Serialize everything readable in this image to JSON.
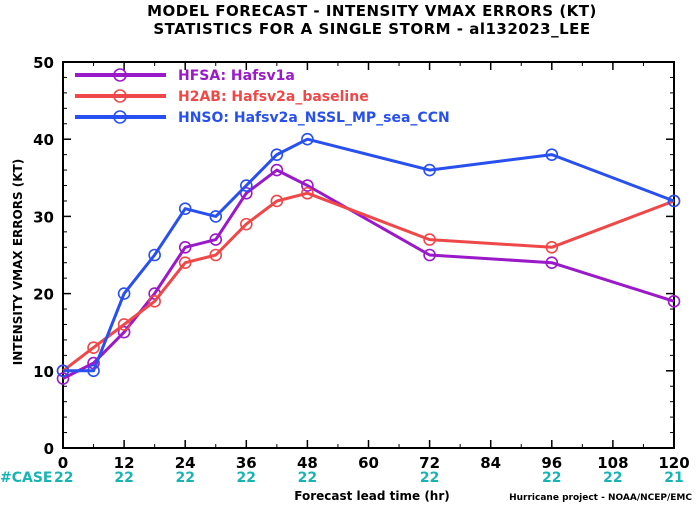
{
  "chart_data": {
    "type": "line",
    "title": "MODEL FORECAST - INTENSITY VMAX ERRORS (KT)",
    "subtitle": "STATISTICS FOR A SINGLE STORM - al132023_LEE",
    "xlabel": "Forecast lead time (hr)",
    "ylabel": "INTENSITY VMAX ERRORS (KT)",
    "xlim": [
      0,
      120
    ],
    "ylim": [
      0,
      50
    ],
    "xticks": [
      0,
      12,
      24,
      36,
      48,
      60,
      72,
      84,
      96,
      108,
      120
    ],
    "xtick_labels": [
      "0",
      "12",
      "24",
      "36",
      "48",
      "60",
      "72",
      "84",
      "96",
      "108",
      "120"
    ],
    "yticks": [
      0,
      10,
      20,
      30,
      40,
      50
    ],
    "ytick_labels": [
      "0",
      "10",
      "20",
      "30",
      "40",
      "50"
    ],
    "grid": false,
    "legend_position": "top-left",
    "series": [
      {
        "name": "HFSA:  Hafsv1a",
        "color": "#9a19c8",
        "x": [
          0,
          6,
          12,
          18,
          24,
          30,
          36,
          42,
          48,
          72,
          96,
          120
        ],
        "values": [
          9,
          11,
          15,
          20,
          26,
          27,
          33,
          36,
          34,
          25,
          24,
          19
        ]
      },
      {
        "name": "H2AB:  Hafsv2a_baseline",
        "color": "#f04848",
        "x": [
          0,
          6,
          12,
          18,
          24,
          30,
          36,
          42,
          48,
          72,
          96,
          120
        ],
        "values": [
          10,
          13,
          16,
          19,
          24,
          25,
          29,
          32,
          33,
          27,
          26,
          32
        ]
      },
      {
        "name": "HNSO:  Hafsv2a_NSSL_MP_sea_CCN",
        "color": "#2850f0",
        "x": [
          0,
          6,
          12,
          18,
          24,
          30,
          36,
          42,
          48,
          72,
          96,
          120
        ],
        "values": [
          10,
          10,
          20,
          25,
          31,
          30,
          34,
          38,
          40,
          36,
          38,
          32
        ]
      }
    ],
    "case_label": "#CASE",
    "case_x": [
      0,
      12,
      24,
      36,
      48,
      72,
      96,
      108,
      120
    ],
    "case_counts": [
      "22",
      "22",
      "22",
      "22",
      "22",
      "22",
      "22",
      "22",
      "21"
    ],
    "credit": "Hurricane project - NOAA/NCEP/EMC"
  }
}
